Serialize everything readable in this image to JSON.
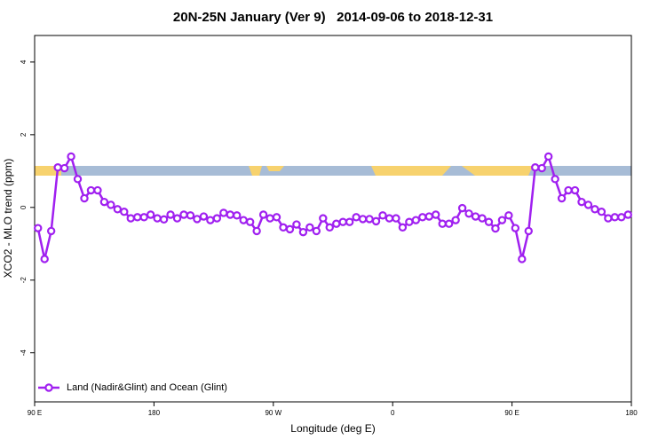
{
  "chart_data": {
    "type": "line",
    "title": "20N-25N January (Ver 9)   2014-09-06 to 2018-12-31",
    "x_label": "Longitude (deg E)",
    "y_label": "XCO2 - MLO trend (ppm)",
    "x": [
      92.5,
      97.5,
      102.5,
      107.5,
      112.5,
      117.5,
      122.5,
      127.5,
      132.5,
      137.5,
      142.5,
      147.5,
      152.5,
      157.5,
      162.5,
      167.5,
      172.5,
      177.5,
      182.5,
      187.5,
      192.5,
      197.5,
      202.5,
      207.5,
      212.5,
      217.5,
      222.5,
      227.5,
      232.5,
      237.5,
      242.5,
      247.5,
      252.5,
      257.5,
      262.5,
      267.5,
      272.5,
      277.5,
      282.5,
      287.5,
      292.5,
      297.5,
      302.5,
      307.5,
      312.5,
      317.5,
      322.5,
      327.5,
      332.5,
      337.5,
      342.5,
      347.5,
      352.5,
      357.5,
      362.5,
      367.5,
      372.5,
      377.5,
      382.5,
      387.5,
      392.5,
      397.5,
      402.5,
      407.5,
      412.5,
      417.5,
      422.5,
      427.5,
      432.5,
      437.5,
      442.5,
      447.5,
      452.5,
      457.5,
      462.5,
      467.5,
      472.5,
      477.5,
      482.5,
      487.5,
      492.5,
      497.5,
      502.5,
      507.5,
      512.5,
      517.5,
      522.5,
      527.5,
      532.5,
      537.5
    ],
    "series": [
      {
        "name": "Land (Nadir&Glint) and Ocean (Glint)",
        "color": "#a020f0",
        "values": [
          -0.57,
          -1.42,
          -0.65,
          1.1,
          1.08,
          1.4,
          0.78,
          0.25,
          0.47,
          0.47,
          0.15,
          0.07,
          -0.05,
          -0.12,
          -0.3,
          -0.27,
          -0.27,
          -0.2,
          -0.3,
          -0.33,
          -0.2,
          -0.3,
          -0.2,
          -0.22,
          -0.32,
          -0.25,
          -0.35,
          -0.3,
          -0.15,
          -0.2,
          -0.22,
          -0.35,
          -0.4,
          -0.65,
          -0.2,
          -0.3,
          -0.27,
          -0.55,
          -0.6,
          -0.47,
          -0.68,
          -0.55,
          -0.65,
          -0.3,
          -0.55,
          -0.45,
          -0.4,
          -0.4,
          -0.27,
          -0.32,
          -0.32,
          -0.38,
          -0.22,
          -0.3,
          -0.3,
          -0.55,
          -0.4,
          -0.35,
          -0.27,
          -0.25,
          -0.2,
          -0.45,
          -0.45,
          -0.35,
          -0.02,
          -0.17,
          -0.25,
          -0.3,
          -0.4,
          -0.58,
          -0.35,
          -0.22,
          -0.57,
          -1.42,
          -0.65,
          1.1,
          1.08,
          1.4,
          0.78,
          0.25,
          0.47,
          0.47,
          0.15,
          0.07,
          -0.05,
          -0.12,
          -0.3,
          -0.27,
          -0.27,
          -0.2
        ]
      }
    ],
    "xlim": [
      90,
      540
    ],
    "xticks": [
      {
        "value": 90,
        "label": "90 E"
      },
      180,
      {
        "value": 270,
        "label": "90 W"
      },
      {
        "value": 360,
        "label": "0"
      },
      {
        "value": 450,
        "label": "90 E"
      },
      {
        "value": 540,
        "label": "180"
      }
    ],
    "ylim": [
      -5.35,
      4.73
    ],
    "yticks": [
      -4,
      -2,
      0,
      2,
      4
    ],
    "legend": "bottomleft"
  }
}
